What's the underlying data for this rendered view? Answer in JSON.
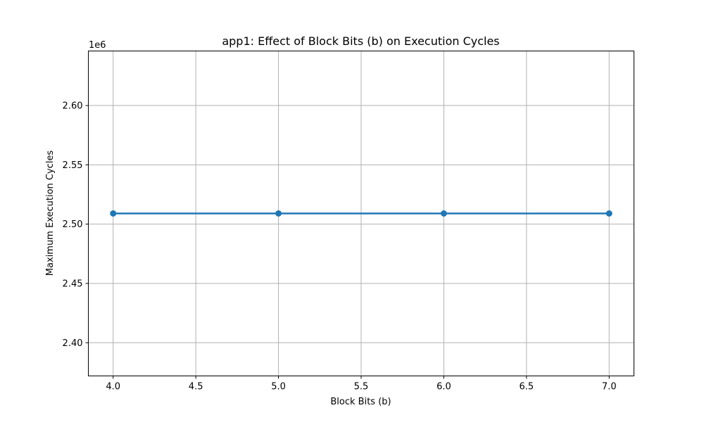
{
  "chart_data": {
    "type": "line",
    "title": "app1: Effect of Block Bits (b) on Execution Cycles",
    "xlabel": "Block Bits (b)",
    "ylabel": "Maximum Execution Cycles",
    "y_offset_label": "1e6",
    "x": [
      4,
      5,
      6,
      7
    ],
    "series": [
      {
        "values": [
          2509000,
          2509000,
          2509000,
          2509000
        ]
      }
    ],
    "xlim": [
      3.85,
      7.15
    ],
    "ylim": [
      2372000,
      2646000
    ],
    "xticks": [
      4.0,
      4.5,
      5.0,
      5.5,
      6.0,
      6.5,
      7.0
    ],
    "xtick_labels": [
      "4.0",
      "4.5",
      "5.0",
      "5.5",
      "6.0",
      "6.5",
      "7.0"
    ],
    "yticks": [
      2400000,
      2450000,
      2500000,
      2550000,
      2600000
    ],
    "ytick_labels": [
      "2.40",
      "2.45",
      "2.50",
      "2.55",
      "2.60"
    ],
    "grid": true,
    "colors": {
      "line": "#1f77b4"
    }
  }
}
